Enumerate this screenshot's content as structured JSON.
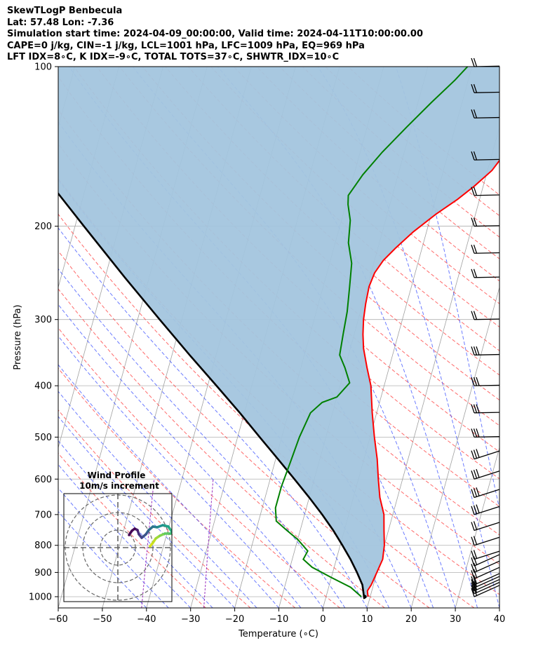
{
  "header": {
    "line1": "SkewTLogP Benbecula",
    "line2": "Lat: 57.48   Lon: -7.36",
    "line3": "Simulation start time: 2024-04-09_00:00:00, Valid time: 2024-04-11T10:00:00.00",
    "line4": "CAPE=0 j/kg, CIN=-1 j/kg, LCL=1001 hPa, LFC=1009 hPa, EQ=969 hPa",
    "line5": "LFT IDX=8∘C, K IDX=-9∘C, TOTAL TOTS=37∘C, SHWTR_IDX=10∘C"
  },
  "chart_data": {
    "type": "skew-t log-p",
    "xlabel": "Temperature (∘C)",
    "ylabel": "Pressure (hPa)",
    "xlim": [
      -60,
      40
    ],
    "ylim": [
      1050,
      100
    ],
    "x_ticks": [
      "−60",
      "−50",
      "−40",
      "−30",
      "−20",
      "−10",
      "0",
      "10",
      "20",
      "30",
      "40"
    ],
    "y_ticks": [
      "100",
      "200",
      "300",
      "400",
      "500",
      "600",
      "700",
      "800",
      "900",
      "1000"
    ],
    "y_scale": "log",
    "grid": true,
    "temperature_profile": {
      "color": "#ff0000",
      "points": [
        [
          9.5,
          1000
        ],
        [
          9.0,
          975
        ],
        [
          9.5,
          950
        ],
        [
          10,
          900
        ],
        [
          10.5,
          850
        ],
        [
          10,
          800
        ],
        [
          9,
          750
        ],
        [
          8,
          700
        ],
        [
          6,
          650
        ],
        [
          4.5,
          600
        ],
        [
          3,
          550
        ],
        [
          1,
          500
        ],
        [
          -1,
          450
        ],
        [
          -3,
          400
        ],
        [
          -5,
          370
        ],
        [
          -7,
          340
        ],
        [
          -8,
          320
        ],
        [
          -8.8,
          300
        ],
        [
          -9.3,
          280
        ],
        [
          -9.6,
          260
        ],
        [
          -9.2,
          245
        ],
        [
          -8,
          232
        ],
        [
          -6,
          220
        ],
        [
          -3,
          205
        ],
        [
          1,
          190
        ],
        [
          5,
          178
        ],
        [
          8,
          168
        ],
        [
          11,
          157
        ],
        [
          13,
          145
        ],
        [
          15,
          133
        ],
        [
          17,
          122
        ],
        [
          18,
          112
        ],
        [
          19,
          103
        ],
        [
          20,
          100
        ]
      ]
    },
    "dewpoint_profile": {
      "color": "#008000",
      "points": [
        [
          8,
          1000
        ],
        [
          5,
          960
        ],
        [
          0,
          920
        ],
        [
          -5,
          880
        ],
        [
          -7.5,
          850
        ],
        [
          -7,
          820
        ],
        [
          -10,
          780
        ],
        [
          -13,
          750
        ],
        [
          -16,
          720
        ],
        [
          -17,
          680
        ],
        [
          -17,
          620
        ],
        [
          -16.5,
          560
        ],
        [
          -16,
          500
        ],
        [
          -15,
          450
        ],
        [
          -13,
          430
        ],
        [
          -10,
          420
        ],
        [
          -8,
          395
        ],
        [
          -10,
          370
        ],
        [
          -12,
          350
        ],
        [
          -12.5,
          320
        ],
        [
          -13,
          290
        ],
        [
          -14,
          260
        ],
        [
          -15,
          235
        ],
        [
          -17,
          215
        ],
        [
          -18,
          195
        ],
        [
          -19.5,
          182
        ],
        [
          -20,
          175
        ],
        [
          -18,
          160
        ],
        [
          -15,
          145
        ],
        [
          -11,
          130
        ],
        [
          -7,
          117
        ],
        [
          -3,
          106
        ],
        [
          -1,
          100
        ]
      ]
    },
    "parcel_profile": {
      "color": "#000000",
      "points": [
        [
          8.8,
          1010
        ],
        [
          7.5,
          950
        ],
        [
          5.5,
          900
        ],
        [
          3.2,
          850
        ],
        [
          0.5,
          800
        ],
        [
          -2.5,
          750
        ],
        [
          -6,
          700
        ],
        [
          -10,
          650
        ],
        [
          -14.5,
          600
        ],
        [
          -19.5,
          550
        ],
        [
          -25,
          500
        ],
        [
          -31,
          450
        ],
        [
          -38,
          400
        ],
        [
          -46,
          350
        ],
        [
          -55,
          300
        ],
        [
          -65.5,
          250
        ],
        [
          -78,
          200
        ],
        [
          -87,
          170
        ],
        [
          -96,
          145
        ],
        [
          -104,
          125
        ],
        [
          -110,
          112
        ],
        [
          -116,
          100
        ]
      ]
    },
    "shaded_region": {
      "color": "#a3c5de",
      "between": [
        "temperature_profile",
        "parcel_profile"
      ]
    },
    "wind_barbs": {
      "levels_hpa": [
        1000,
        987,
        975,
        962,
        950,
        925,
        900,
        875,
        850,
        800,
        750,
        700,
        650,
        600,
        550,
        500,
        450,
        400,
        350,
        300,
        250,
        225,
        200,
        175,
        150,
        125,
        112,
        100
      ],
      "note": "westerly winds shown as barbs along the right edge"
    },
    "wind_profile_inset": {
      "title": "Wind Profile",
      "subtitle": "10m/s increment"
    },
    "colors": {
      "dry_adiabat": "#ff4444",
      "moist_adiabat": "#3a4fff",
      "mixing_ratio": "#9b30c0",
      "isotherm": "#888888",
      "isobar": "#aaaaaa",
      "temperature": "#ff0000",
      "dewpoint": "#008000",
      "parcel": "#000000",
      "shading": "#a3c5de"
    }
  }
}
